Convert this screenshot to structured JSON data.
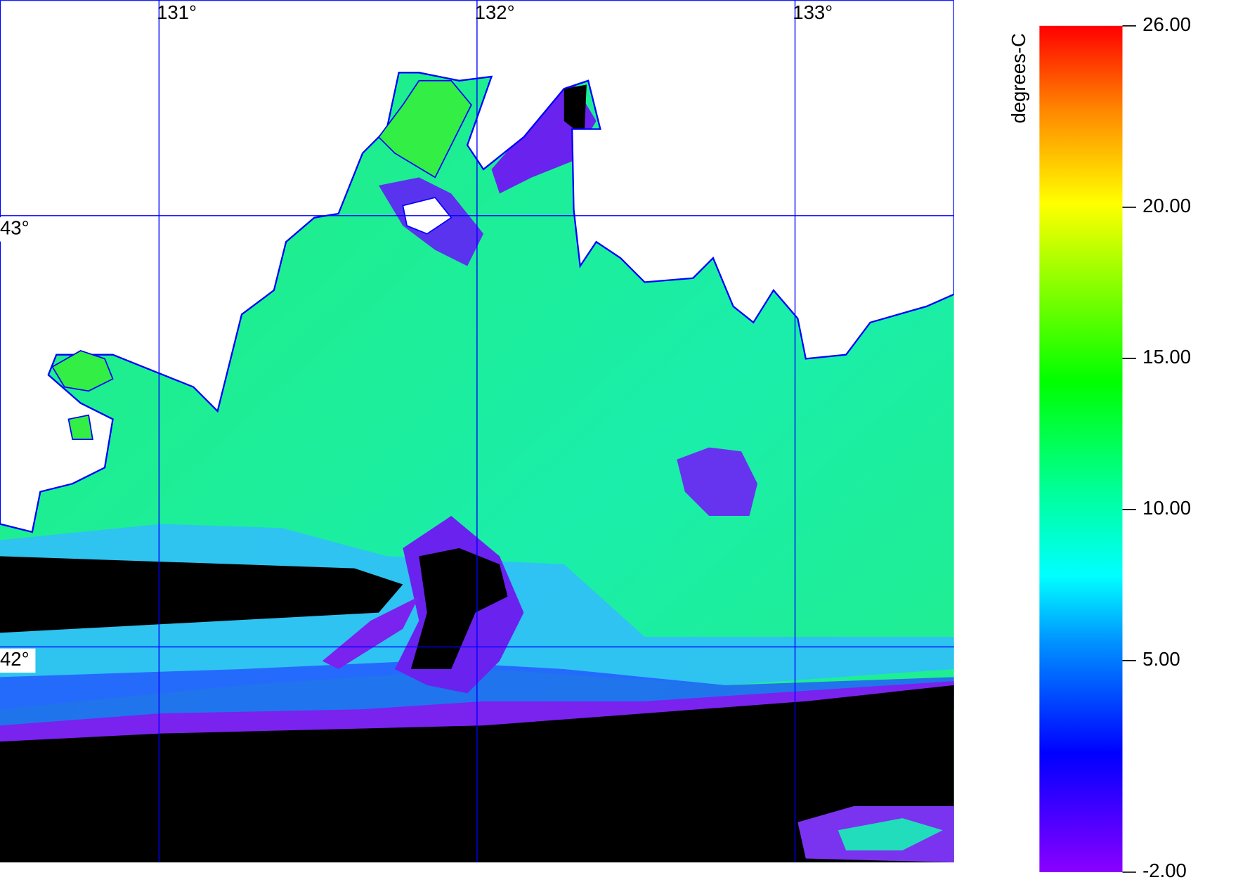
{
  "map": {
    "lon_range": [
      130.5,
      133.5
    ],
    "lat_range": [
      41.5,
      43.5
    ],
    "lon_ticks": [
      {
        "value": 131,
        "label": "131°"
      },
      {
        "value": 132,
        "label": "132°"
      },
      {
        "value": 133,
        "label": "133°"
      }
    ],
    "lat_ticks": [
      {
        "value": 43,
        "label": "43°"
      },
      {
        "value": 42,
        "label": "42°"
      }
    ],
    "grid_color": "#0000ff",
    "colorbar": {
      "label": "degrees-C",
      "range": [
        -2,
        26
      ],
      "ticks": [
        {
          "value": 26,
          "label": "26.00"
        },
        {
          "value": 20,
          "label": "20.00"
        },
        {
          "value": 15,
          "label": "15.00"
        },
        {
          "value": 10,
          "label": "10.00"
        },
        {
          "value": 5,
          "label": "5.00"
        },
        {
          "value": -2,
          "label": "-2.00"
        }
      ]
    }
  }
}
